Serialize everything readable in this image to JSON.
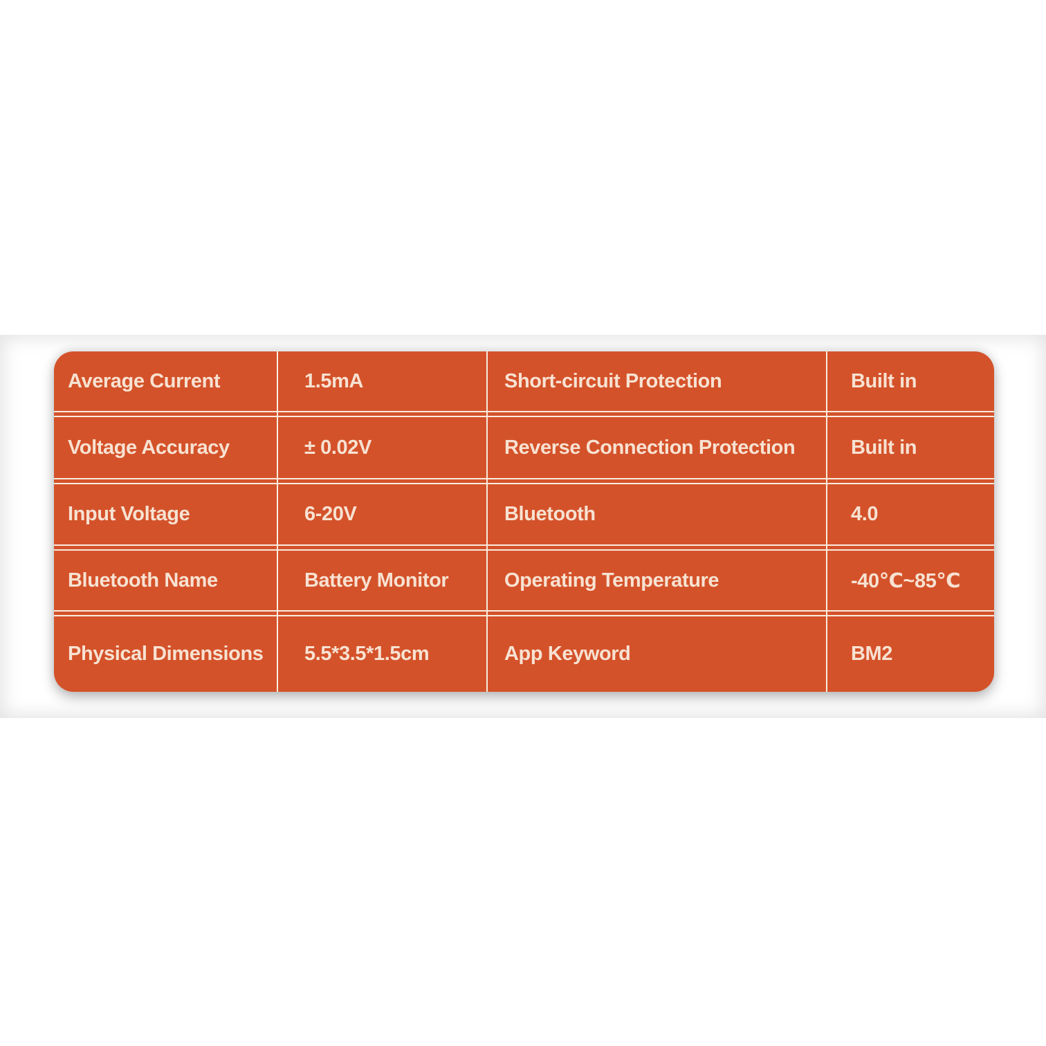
{
  "colors": {
    "card_bg": "#d4522a",
    "text": "#f7e2d2",
    "line": "#f9ecdf",
    "page_bg": "#ffffff"
  },
  "table": {
    "rows": [
      {
        "cells": [
          "Average Current",
          "1.5mA",
          "Short-circuit Protection",
          "Built in"
        ]
      },
      {
        "cells": [
          "Voltage Accuracy",
          "± 0.02V",
          "Reverse Connection Protection",
          "Built in"
        ]
      },
      {
        "cells": [
          "Input Voltage",
          "6-20V",
          "Bluetooth",
          "4.0"
        ]
      },
      {
        "cells": [
          "Bluetooth Name",
          "Battery Monitor",
          "Operating Temperature",
          "-40℃~85℃"
        ]
      },
      {
        "cells": [
          "Physical Dimensions",
          "5.5*3.5*1.5cm",
          "App Keyword",
          "BM2"
        ]
      }
    ]
  },
  "chart_data": {
    "type": "table",
    "title": "",
    "has_header": false,
    "layout": "two property-value column pairs, orange card, white grid lines, rounded corners",
    "rows": [
      [
        "Average Current",
        "1.5mA",
        "Short-circuit Protection",
        "Built in"
      ],
      [
        "Voltage Accuracy",
        "± 0.02V",
        "Reverse Connection Protection",
        "Built in"
      ],
      [
        "Input Voltage",
        "6-20V",
        "Bluetooth",
        "4.0"
      ],
      [
        "Bluetooth Name",
        "Battery Monitor",
        "Operating Temperature",
        "-40℃~85℃"
      ],
      [
        "Physical Dimensions",
        "5.5*3.5*1.5cm",
        "App Keyword",
        "BM2"
      ]
    ]
  }
}
